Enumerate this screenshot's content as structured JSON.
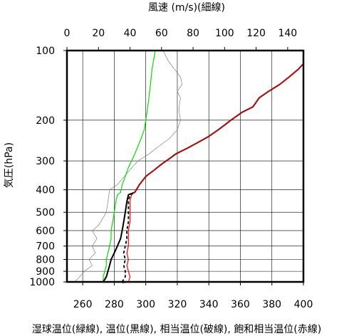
{
  "chart_data": {
    "type": "line",
    "title": "",
    "top_axis": {
      "label": "風速 (m/s)(細線)",
      "range": [
        0,
        150
      ],
      "ticks": [
        0,
        20,
        40,
        60,
        80,
        100,
        120,
        140
      ]
    },
    "bottom_axis": {
      "label": "湿球温位(緑線), 温位(黒線), 相当温位(破線), 飽和相当温位(赤線)",
      "range": [
        250,
        400
      ],
      "ticks": [
        260,
        280,
        300,
        320,
        340,
        360,
        380,
        400
      ]
    },
    "y_axis": {
      "label": "気圧(hPa)",
      "scale": "log",
      "inverted": true,
      "range": [
        1000,
        100
      ],
      "ticks": [
        100,
        200,
        300,
        400,
        500,
        600,
        700,
        800,
        900,
        1000
      ]
    },
    "grid": true,
    "series": [
      {
        "name": "湿球温位",
        "color": "#00e000",
        "axis": "bottom",
        "style": "solid",
        "points": [
          [
            273,
            1000
          ],
          [
            273,
            950
          ],
          [
            274,
            900
          ],
          [
            275,
            850
          ],
          [
            275,
            800
          ],
          [
            276,
            750
          ],
          [
            277,
            700
          ],
          [
            278,
            650
          ],
          [
            278,
            600
          ],
          [
            279,
            550
          ],
          [
            280,
            500
          ],
          [
            281,
            450
          ],
          [
            282,
            420
          ],
          [
            284,
            410
          ],
          [
            285,
            380
          ],
          [
            287,
            350
          ],
          [
            289,
            320
          ],
          [
            291,
            300
          ],
          [
            293,
            280
          ],
          [
            295,
            260
          ],
          [
            297,
            240
          ],
          [
            299,
            220
          ],
          [
            300,
            200
          ],
          [
            301,
            180
          ],
          [
            302,
            160
          ],
          [
            303,
            140
          ],
          [
            304,
            120
          ],
          [
            305,
            110
          ],
          [
            306,
            100
          ]
        ]
      },
      {
        "name": "温位",
        "color": "#000000",
        "axis": "bottom",
        "style": "solid",
        "points": [
          [
            273,
            1000
          ],
          [
            275,
            950
          ],
          [
            276,
            900
          ],
          [
            277,
            850
          ],
          [
            278,
            800
          ],
          [
            280,
            750
          ],
          [
            282,
            700
          ],
          [
            284,
            650
          ],
          [
            285,
            600
          ],
          [
            286,
            550
          ],
          [
            287,
            500
          ],
          [
            288,
            450
          ],
          [
            289,
            420
          ],
          [
            293,
            410
          ],
          [
            296,
            380
          ],
          [
            300,
            350
          ],
          [
            305,
            330
          ],
          [
            310,
            310
          ],
          [
            316,
            290
          ],
          [
            319,
            280
          ],
          [
            326,
            265
          ],
          [
            333,
            250
          ],
          [
            340,
            235
          ],
          [
            346,
            220
          ],
          [
            350,
            210
          ],
          [
            354,
            200
          ],
          [
            361,
            185
          ],
          [
            368,
            175
          ],
          [
            372,
            160
          ],
          [
            378,
            150
          ],
          [
            385,
            140
          ],
          [
            391,
            130
          ],
          [
            397,
            120
          ],
          [
            400,
            114
          ]
        ]
      },
      {
        "name": "相当温位",
        "color": "#000000",
        "axis": "bottom",
        "style": "dashed",
        "points": [
          [
            285,
            1000
          ],
          [
            287,
            950
          ],
          [
            287,
            900
          ],
          [
            286,
            850
          ],
          [
            287,
            800
          ],
          [
            286,
            750
          ],
          [
            287,
            700
          ],
          [
            288,
            650
          ],
          [
            288,
            600
          ],
          [
            289,
            550
          ],
          [
            289,
            500
          ],
          [
            289,
            450
          ],
          [
            290,
            420
          ],
          [
            293,
            410
          ]
        ]
      },
      {
        "name": "飽和相当温位",
        "color": "#ff0000",
        "axis": "bottom",
        "style": "solid",
        "points": [
          [
            285,
            1010
          ],
          [
            289,
            1000
          ],
          [
            290,
            950
          ],
          [
            289,
            900
          ],
          [
            288,
            850
          ],
          [
            289,
            800
          ],
          [
            288,
            750
          ],
          [
            289,
            700
          ],
          [
            289,
            650
          ],
          [
            289,
            600
          ],
          [
            290,
            550
          ],
          [
            290,
            500
          ],
          [
            290,
            450
          ],
          [
            291,
            420
          ],
          [
            293,
            410
          ],
          [
            296,
            380
          ],
          [
            300,
            350
          ],
          [
            305,
            330
          ],
          [
            310,
            310
          ],
          [
            316,
            290
          ],
          [
            319,
            280
          ],
          [
            326,
            265
          ],
          [
            333,
            250
          ],
          [
            340,
            235
          ],
          [
            346,
            220
          ],
          [
            350,
            210
          ],
          [
            354,
            200
          ],
          [
            361,
            185
          ],
          [
            368,
            175
          ],
          [
            372,
            160
          ],
          [
            378,
            150
          ],
          [
            385,
            140
          ],
          [
            391,
            130
          ],
          [
            397,
            120
          ],
          [
            400,
            114
          ]
        ]
      },
      {
        "name": "風速",
        "color": "#808080",
        "axis": "top",
        "style": "thin",
        "points": [
          [
            5,
            1000
          ],
          [
            8,
            950
          ],
          [
            11,
            900
          ],
          [
            16,
            850
          ],
          [
            14,
            800
          ],
          [
            18,
            750
          ],
          [
            16,
            700
          ],
          [
            19,
            650
          ],
          [
            16,
            600
          ],
          [
            20,
            570
          ],
          [
            25,
            500
          ],
          [
            26,
            450
          ],
          [
            27,
            400
          ],
          [
            32,
            380
          ],
          [
            38,
            340
          ],
          [
            45,
            300
          ],
          [
            52,
            280
          ],
          [
            58,
            260
          ],
          [
            65,
            240
          ],
          [
            70,
            220
          ],
          [
            72,
            200
          ],
          [
            71,
            180
          ],
          [
            72,
            160
          ],
          [
            70,
            150
          ],
          [
            73,
            140
          ],
          [
            72,
            130
          ],
          [
            68,
            120
          ],
          [
            64,
            110
          ],
          [
            61,
            100
          ]
        ]
      }
    ]
  }
}
